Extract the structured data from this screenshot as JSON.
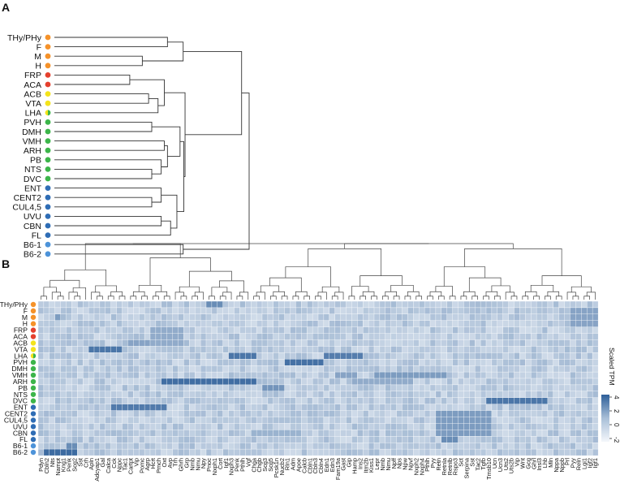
{
  "panels": {
    "a_letter": "A",
    "b_letter": "B"
  },
  "regions": [
    {
      "name": "THy/PHy",
      "color": "#f5922a"
    },
    {
      "name": "F",
      "color": "#f5922a"
    },
    {
      "name": "M",
      "color": "#f5922a"
    },
    {
      "name": "H",
      "color": "#f5922a"
    },
    {
      "name": "FRP",
      "color": "#e5402e"
    },
    {
      "name": "ACA",
      "color": "#e5402e"
    },
    {
      "name": "ACB",
      "color": "#f3e31b"
    },
    {
      "name": "VTA",
      "color": "#f3e31b"
    },
    {
      "name": "LHA",
      "color": "#f3e31b",
      "color2": "#3cb54a"
    },
    {
      "name": "PVH",
      "color": "#3cb54a"
    },
    {
      "name": "DMH",
      "color": "#3cb54a"
    },
    {
      "name": "VMH",
      "color": "#3cb54a"
    },
    {
      "name": "ARH",
      "color": "#3cb54a"
    },
    {
      "name": "PB",
      "color": "#3cb54a"
    },
    {
      "name": "NTS",
      "color": "#3cb54a"
    },
    {
      "name": "DVC",
      "color": "#3cb54a"
    },
    {
      "name": "ENT",
      "color": "#2f6db5"
    },
    {
      "name": "CENT2",
      "color": "#2f6db5"
    },
    {
      "name": "CUL4,5",
      "color": "#2f6db5"
    },
    {
      "name": "UVU",
      "color": "#2f6db5"
    },
    {
      "name": "CBN",
      "color": "#2f6db5"
    },
    {
      "name": "FL",
      "color": "#2f6db5"
    },
    {
      "name": "B6-1",
      "color": "#4d93d9"
    },
    {
      "name": "B6-2",
      "color": "#4d93d9"
    }
  ],
  "genes": [
    "Pdyn",
    "Cbln2",
    "Nts",
    "Nampt",
    "Kng1",
    "Penk",
    "Scg2",
    "Sst",
    "Crh",
    "Apln",
    "Adcyap1",
    "Gal",
    "Calca",
    "Cck",
    "Nppc",
    "Tac1",
    "Cartpt",
    "Vip",
    "Pomc",
    "Agrp",
    "Hcrt",
    "Pmch",
    "Oxt",
    "Avp",
    "Trh",
    "Ghrh",
    "Grp",
    "Nmb",
    "Nmu",
    "Npy",
    "Pnoc",
    "Nxph1",
    "Cort",
    "Igf1",
    "Nxph3",
    "Penk",
    "Pthlh",
    "Vgf",
    "Chga",
    "Chgb",
    "Scg3",
    "Scg5",
    "Pcsk1n",
    "Nucb2",
    "Rln1",
    "Adm",
    "Apoe",
    "Calcb",
    "Cbln1",
    "Cbln3",
    "Cbln4",
    "Edn1",
    "Edn3",
    "Fam19a",
    "Gast",
    "Gip",
    "Hamp",
    "Ins2",
    "Itm2b",
    "Kiss1",
    "Lepr",
    "Nmb",
    "Nmu",
    "Npff",
    "Nps",
    "Npw",
    "Npvf",
    "Nxph2",
    "Nxph4",
    "Pthlh",
    "Pyy",
    "Retn",
    "Retnla",
    "Retnlb",
    "Rspo3",
    "Sct",
    "Serpina",
    "Sst",
    "Tac2",
    "Tgfb",
    "Tmsb10",
    "Ucn",
    "Ucn3",
    "Uts2",
    "Uts2b",
    "Vip",
    "Wnt",
    "Gcg",
    "Ghrl",
    "Insl3",
    "Lhb",
    "Mln",
    "Nppa",
    "Nppb",
    "Prl",
    "Pyy",
    "Reln",
    "Lgi1",
    "Igf2",
    "Igf1"
  ],
  "colorbar": {
    "title": "Scaled TPM",
    "ticks": [
      "4",
      "2",
      "0",
      "-2"
    ]
  }
}
